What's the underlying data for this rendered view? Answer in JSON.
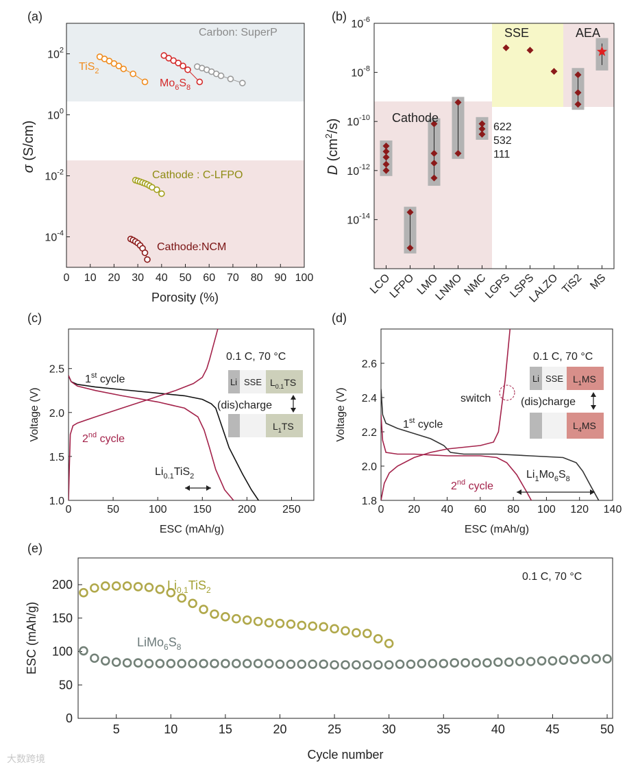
{
  "chart_data": [
    {
      "panel": "(a)",
      "type": "scatter",
      "xlabel": "Porosity (%)",
      "ylabel": "σ (S/cm)",
      "xlim": [
        0,
        100
      ],
      "ylim": [
        1e-05,
        1000
      ],
      "yscale": "log",
      "xticks": [
        "0",
        "10",
        "20",
        "30",
        "40",
        "50",
        "60",
        "70",
        "80",
        "90",
        "100"
      ],
      "yticks": [
        "10^-4",
        "10^-2",
        "10^0",
        "10^2"
      ],
      "regions": [
        {
          "label": "conductive-additive",
          "ymin": 1.3,
          "ymax": 1000,
          "color": "#e9eef1"
        },
        {
          "label": "cathode",
          "ymin": 1e-05,
          "ymax": 0.02,
          "color": "#f3e3e3"
        }
      ],
      "series": [
        {
          "name": "TiS2",
          "color": "#f08c1e",
          "x": [
            14,
            16,
            18,
            20,
            22,
            24,
            28,
            33
          ],
          "y": [
            80,
            68,
            58,
            48,
            40,
            32,
            22,
            12
          ]
        },
        {
          "name": "Mo6S8",
          "color": "#d42a2a",
          "x": [
            41,
            43,
            45,
            47,
            49,
            51,
            56
          ],
          "y": [
            88,
            72,
            60,
            50,
            40,
            30,
            12
          ]
        },
        {
          "name": "Carbon: SuperP",
          "color": "#9a9a9a",
          "x": [
            55,
            57,
            59,
            61,
            63,
            65,
            69,
            74
          ],
          "y": [
            38,
            34,
            30,
            26,
            22,
            19,
            15,
            11
          ]
        },
        {
          "name": "Cathode : C-LFPO",
          "color": "#a3a11e",
          "x": [
            29,
            30,
            31,
            32,
            33,
            34,
            35,
            36,
            38,
            40
          ],
          "y": [
            0.0072,
            0.0068,
            0.0064,
            0.006,
            0.0056,
            0.0052,
            0.0047,
            0.0042,
            0.0035,
            0.0026
          ]
        },
        {
          "name": "Cathode:NCM",
          "color": "#8b1a1a",
          "x": [
            27,
            28,
            29,
            30,
            31,
            32,
            33,
            34
          ],
          "y": [
            8.5e-05,
            7.8e-05,
            7e-05,
            6.2e-05,
            5.2e-05,
            4.2e-05,
            3e-05,
            1.8e-05
          ]
        }
      ],
      "annotations": [
        "(a)",
        "TiS2",
        "Mo6S8",
        "Carbon: SuperP",
        "Cathode : C-LFPO",
        "Cathode:NCM"
      ]
    },
    {
      "panel": "(b)",
      "type": "scatter",
      "ylabel": "D (cm²/s)",
      "yscale": "log",
      "ylim": [
        1e-16,
        1e-06
      ],
      "yticks": [
        "10^-14",
        "10^-12",
        "10^-10",
        "10^-8",
        "10^-6"
      ],
      "categories": [
        "LCO",
        "LFPO",
        "LMO",
        "LNMO",
        "NMC",
        "LGPS",
        "LSPS",
        "LALZO",
        "TiS2",
        "MS"
      ],
      "groups": [
        {
          "label": "Cathode",
          "from": "LCO",
          "to": "NMC",
          "color": "#f2e2e2"
        },
        {
          "label": "SSE",
          "from": "LGPS",
          "to": "LALZO",
          "color": "#f7f7c8"
        },
        {
          "label": "AEA",
          "from": "TiS2",
          "to": "MS",
          "color": "#f2e2e2"
        }
      ],
      "ranges": [
        {
          "category": "LCO",
          "min": 1e-12,
          "max": 1e-11
        },
        {
          "category": "LFPO",
          "min": 7e-16,
          "max": 2e-14
        },
        {
          "category": "LMO",
          "min": 4e-13,
          "max": 8e-11
        },
        {
          "category": "LNMO",
          "min": 5e-12,
          "max": 6e-10
        },
        {
          "category": "NMC",
          "min": 3e-11,
          "max": 9e-11
        },
        {
          "category": "TiS2",
          "min": 5e-10,
          "max": 9e-09
        },
        {
          "category": "MS",
          "min": 2e-08,
          "max": 1.5e-07
        }
      ],
      "points": [
        {
          "category": "LCO",
          "values": [
            1e-11,
            6e-12,
            3.5e-12,
            1.8e-12,
            1e-12
          ]
        },
        {
          "category": "LFPO",
          "values": [
            2e-14,
            7e-16
          ]
        },
        {
          "category": "LMO",
          "values": [
            8e-11,
            5e-12,
            2e-12,
            5e-13
          ]
        },
        {
          "category": "LNMO",
          "values": [
            6e-10,
            5e-12
          ]
        },
        {
          "category": "NMC",
          "values": [
            8e-11,
            5e-11,
            3e-11
          ]
        },
        {
          "category": "LGPS",
          "values": [
            1e-07
          ]
        },
        {
          "category": "LSPS",
          "values": [
            8e-08
          ]
        },
        {
          "category": "LALZO",
          "values": [
            1.1e-08
          ]
        },
        {
          "category": "TiS2",
          "values": [
            8e-09,
            1.5e-09,
            5e-10
          ]
        },
        {
          "category": "MS",
          "values": [
            7e-08
          ],
          "marker": "star"
        }
      ],
      "nmc_labels": [
        "622",
        "532",
        "111"
      ],
      "annotations": [
        "(b)",
        "Cathode",
        "SSE",
        "AEA"
      ]
    },
    {
      "panel": "(c)",
      "type": "line",
      "xlabel": "ESC (mAh/g)",
      "ylabel": "Voltage (V)",
      "xlim": [
        0,
        275
      ],
      "ylim": [
        1.0,
        2.95
      ],
      "xticks": [
        "0",
        "50",
        "100",
        "150",
        "200",
        "250"
      ],
      "yticks": [
        "1.0",
        "1.5",
        "2.0",
        "2.5"
      ],
      "series": [
        {
          "name": "1st cycle",
          "color": "#111111",
          "x": [
            0,
            3,
            10,
            30,
            60,
            100,
            130,
            150,
            160,
            165,
            170,
            180,
            195,
            205,
            213
          ],
          "y": [
            2.42,
            2.35,
            2.32,
            2.29,
            2.26,
            2.22,
            2.19,
            2.15,
            2.1,
            2.05,
            1.9,
            1.6,
            1.3,
            1.12,
            1.0
          ]
        },
        {
          "name": "2nd cycle discharge",
          "color": "#a3224a",
          "x": [
            0,
            3,
            10,
            30,
            60,
            100,
            130,
            145,
            152,
            158,
            165,
            175,
            185
          ],
          "y": [
            2.42,
            2.35,
            2.3,
            2.25,
            2.19,
            2.12,
            2.05,
            1.95,
            1.8,
            1.6,
            1.35,
            1.12,
            1.0
          ]
        },
        {
          "name": "2nd cycle charge",
          "color": "#a3224a",
          "x": [
            0,
            1,
            2,
            5,
            10,
            30,
            60,
            90,
            120,
            140,
            150,
            155,
            158,
            162,
            166,
            170
          ],
          "y": [
            1.0,
            1.4,
            1.75,
            1.85,
            1.88,
            1.95,
            2.05,
            2.15,
            2.25,
            2.33,
            2.4,
            2.5,
            2.6,
            2.75,
            2.9,
            3.05
          ]
        }
      ],
      "annotations": [
        "(c)",
        "0.1 C, 70 °C",
        "1st cycle",
        "2nd cycle",
        "(dis)charge",
        "Li0.1TiS2",
        "Li",
        "SSE",
        "L0.1TS",
        "L1TS"
      ]
    },
    {
      "panel": "(d)",
      "type": "line",
      "xlabel": "ESC (mAh/g)",
      "ylabel": "Voltage (V)",
      "xlim": [
        0,
        140
      ],
      "ylim": [
        1.8,
        2.8
      ],
      "xticks": [
        "0",
        "20",
        "40",
        "60",
        "80",
        "100",
        "120",
        "140"
      ],
      "yticks": [
        "1.8",
        "2.0",
        "2.2",
        "2.4",
        "2.6"
      ],
      "series": [
        {
          "name": "1st cycle",
          "color": "#333333",
          "x": [
            0,
            1,
            3,
            10,
            20,
            30,
            38,
            42,
            50,
            70,
            90,
            110,
            118,
            122,
            127,
            131,
            134
          ],
          "y": [
            2.45,
            2.3,
            2.25,
            2.22,
            2.19,
            2.16,
            2.12,
            2.08,
            2.07,
            2.07,
            2.06,
            2.05,
            2.02,
            1.97,
            1.88,
            1.81,
            1.76
          ]
        },
        {
          "name": "2nd cycle discharge",
          "color": "#a3224a",
          "x": [
            0,
            1,
            3,
            10,
            20,
            40,
            60,
            70,
            76,
            82,
            88,
            92
          ],
          "y": [
            2.3,
            2.15,
            2.08,
            2.07,
            2.07,
            2.06,
            2.06,
            2.05,
            2.02,
            1.95,
            1.85,
            1.78
          ]
        },
        {
          "name": "2nd cycle charge",
          "color": "#a3224a",
          "x": [
            0,
            2,
            5,
            10,
            20,
            30,
            40,
            50,
            60,
            68,
            71,
            73,
            75,
            77,
            79
          ],
          "y": [
            1.8,
            1.9,
            1.96,
            2.0,
            2.05,
            2.08,
            2.1,
            2.11,
            2.12,
            2.14,
            2.2,
            2.35,
            2.5,
            2.7,
            2.9
          ]
        }
      ],
      "annotations": [
        "(d)",
        "0.1 C, 70 °C",
        "1st cycle",
        "2nd cycle",
        "switch",
        "(dis)charge",
        "Li1Mo6S8",
        "Li",
        "SSE",
        "L1MS",
        "L4MS"
      ]
    },
    {
      "panel": "(e)",
      "type": "scatter",
      "xlabel": "Cycle number",
      "ylabel": "ESC (mAh/g)",
      "xlim": [
        1.5,
        50.5
      ],
      "ylim": [
        0,
        240
      ],
      "xticks": [
        "5",
        "10",
        "15",
        "20",
        "25",
        "30",
        "35",
        "40",
        "45",
        "50"
      ],
      "yticks": [
        "0",
        "50",
        "100",
        "150",
        "200"
      ],
      "series": [
        {
          "name": "Li0.1TiS2",
          "color": "#b0a84a",
          "x": [
            2,
            3,
            4,
            5,
            6,
            7,
            8,
            9,
            10,
            11,
            12,
            13,
            14,
            15,
            16,
            17,
            18,
            19,
            20,
            21,
            22,
            23,
            24,
            25,
            26,
            27,
            28,
            29,
            30
          ],
          "y": [
            188,
            195,
            198,
            198,
            198,
            197,
            196,
            193,
            188,
            180,
            172,
            163,
            156,
            152,
            149,
            147,
            145,
            143,
            142,
            141,
            139,
            138,
            137,
            134,
            131,
            128,
            127,
            119,
            112
          ]
        },
        {
          "name": "LiMo6S8",
          "color": "#728077",
          "x": [
            2,
            3,
            4,
            5,
            6,
            7,
            8,
            9,
            10,
            11,
            12,
            13,
            14,
            15,
            16,
            17,
            18,
            19,
            20,
            21,
            22,
            23,
            24,
            25,
            26,
            27,
            28,
            29,
            30,
            31,
            32,
            33,
            34,
            35,
            36,
            37,
            38,
            39,
            40,
            41,
            42,
            43,
            44,
            45,
            46,
            47,
            48,
            49,
            50
          ],
          "y": [
            101,
            90,
            86,
            84,
            83,
            83,
            82,
            82,
            82,
            82,
            82,
            82,
            82,
            82,
            82,
            82,
            82,
            82,
            81,
            81,
            81,
            81,
            81,
            80,
            80,
            80,
            80,
            80,
            80,
            81,
            81,
            82,
            82,
            82,
            83,
            83,
            83,
            83,
            84,
            84,
            85,
            85,
            86,
            86,
            87,
            88,
            88,
            89,
            89
          ]
        }
      ],
      "annotations": [
        "(e)",
        "0.1 C, 70 °C"
      ]
    }
  ],
  "text": {
    "a": {
      "panel_label": "(a)",
      "y_label_sym": "σ",
      "y_label_unit": " (S/cm)",
      "x_label": "Porosity (%)",
      "tis2_base": "TiS",
      "tis2_sub": "2",
      "mo_part1": "Mo",
      "mo_sub1": "6",
      "mo_part2": "S",
      "mo_sub2": "8",
      "superp": "Carbon: SuperP",
      "clfpo": "Cathode : C-LFPO",
      "ncm": "Cathode:NCM"
    },
    "b": {
      "panel_label": "(b)",
      "y_label_sym": "D",
      "y_label_unit": " (cm",
      "y_label_sup": "2",
      "y_label_end": "/s)",
      "cathode": "Cathode",
      "sse": "SSE",
      "aea": "AEA",
      "nmc_622": "622",
      "nmc_532": "532",
      "nmc_111": "111"
    },
    "c": {
      "panel_label": "(c)",
      "condition": "0.1 C, 70 °C",
      "first_cycle_num": "1",
      "first_cycle_sup": "st",
      "first_cycle_word": " cycle",
      "second_cycle_num": "2",
      "second_cycle_sup": "nd",
      "second_cycle_word": " cycle",
      "disc": "(dis)charge",
      "li_part": "Li",
      "li_sub": "0.1",
      "tis_part": "TiS",
      "tis_sub": "2",
      "box_li": "Li",
      "box_sse": "SSE",
      "box_l": "L",
      "box_l_sub": "0.1",
      "box_ts": "TS",
      "box2_l": "L",
      "box2_l_sub": "1",
      "box2_ts": "TS",
      "x_label": "ESC (mAh/g)",
      "y_label": "Voltage (V)"
    },
    "d": {
      "panel_label": "(d)",
      "condition": "0.1 C, 70 °C",
      "first_cycle_num": "1",
      "first_cycle_sup": "st",
      "first_cycle_word": " cycle",
      "second_cycle_num": "2",
      "second_cycle_sup": "nd",
      "second_cycle_word": " cycle",
      "switch": "switch",
      "disc": "(dis)charge",
      "li_part": "Li",
      "li_sub": "1",
      "mo_part": "Mo",
      "mo_sub": "6",
      "s_part": "S",
      "s_sub": "8",
      "box_li": "Li",
      "box_sse": "SSE",
      "box_l": "L",
      "box_l_sub": "1",
      "box_ms": "MS",
      "box2_l": "L",
      "box2_l_sub": "4",
      "box2_ms": "MS",
      "x_label": "ESC (mAh/g)",
      "y_label": "Voltage (V)"
    },
    "e": {
      "panel_label": "(e)",
      "condition": "0.1 C, 70 °C",
      "tis_li": "Li",
      "tis_li_sub": "0.1",
      "tis_part": "TiS",
      "tis_sub": "2",
      "limo_a": "LiMo",
      "limo_sub1": "6",
      "limo_b": "S",
      "limo_sub2": "8",
      "x_label": "Cycle number",
      "y_label": "ESC (mAh/g)"
    },
    "watermark": "大数跨境"
  },
  "tick_text": {
    "ten": "10",
    "a_x": [
      "0",
      "10",
      "20",
      "30",
      "40",
      "50",
      "60",
      "70",
      "80",
      "90",
      "100"
    ],
    "a_y_exp": [
      "-4",
      "-2",
      "0",
      "2"
    ],
    "b_y_exp": [
      "-14",
      "-12",
      "-10",
      "-8",
      "-6"
    ],
    "b_x": [
      "LCO",
      "LFPO",
      "LMO",
      "LNMO",
      "NMC",
      "LGPS",
      "LSPS",
      "LALZO",
      "TiS2",
      "MS"
    ],
    "c_x": [
      "0",
      "50",
      "100",
      "150",
      "200",
      "250"
    ],
    "c_y": [
      "1.0",
      "1.5",
      "2.0",
      "2.5"
    ],
    "d_x": [
      "0",
      "20",
      "40",
      "60",
      "80",
      "100",
      "120",
      "140"
    ],
    "d_y": [
      "1.8",
      "2.0",
      "2.2",
      "2.4",
      "2.6"
    ],
    "e_x": [
      "5",
      "10",
      "15",
      "20",
      "25",
      "30",
      "35",
      "40",
      "45",
      "50"
    ],
    "e_y": [
      "0",
      "50",
      "100",
      "150",
      "200"
    ]
  },
  "colors": {
    "tis2": "#f08c1e",
    "mo6s8": "#d42a2a",
    "superp": "#9a9a9a",
    "clfpo": "#a3a11e",
    "ncm": "#8b1a1a",
    "diamond": "#8b1a1a",
    "cycle2": "#a3224a",
    "tis_e": "#b0a84a",
    "limo_e": "#728077",
    "star": "#e02020"
  }
}
